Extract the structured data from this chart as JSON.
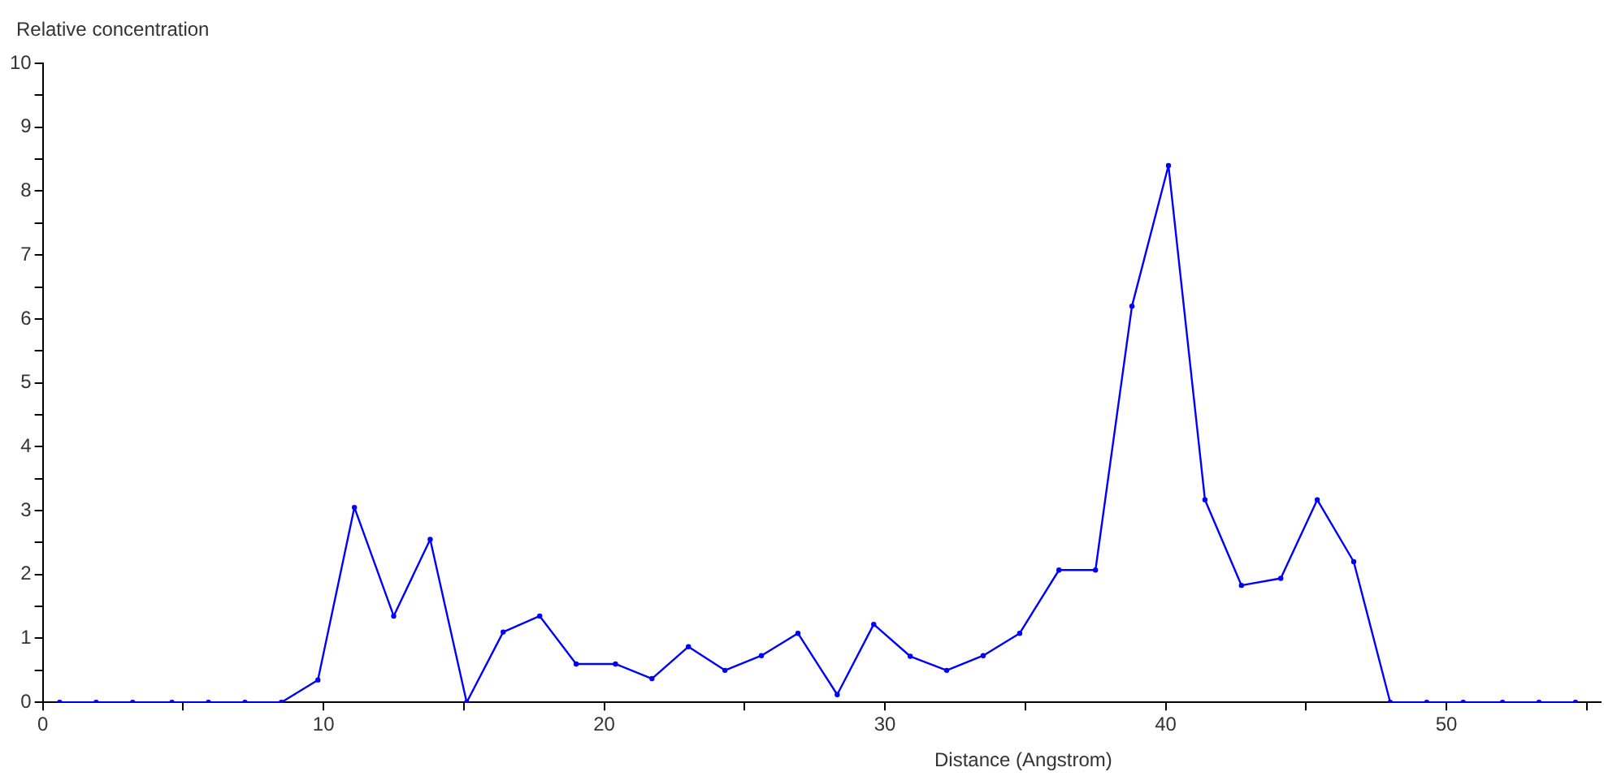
{
  "chart_data": {
    "type": "line",
    "xlabel": "Distance (Angstrom)",
    "ylabel": "Relative concentration",
    "x": [
      0.6,
      1.9,
      3.2,
      4.6,
      5.9,
      7.2,
      8.5,
      9.8,
      11.1,
      12.5,
      13.8,
      15.1,
      16.4,
      17.7,
      19.0,
      20.4,
      21.7,
      23.0,
      24.3,
      25.6,
      26.9,
      28.3,
      29.6,
      30.9,
      32.2,
      33.5,
      34.8,
      36.2,
      37.5,
      38.8,
      40.1,
      41.4,
      42.7,
      44.1,
      45.4,
      46.7,
      48.0,
      49.3,
      50.6,
      52.0,
      53.3,
      54.6
    ],
    "values": [
      0,
      0,
      0,
      0,
      0,
      0,
      0,
      0.35,
      3.05,
      1.35,
      2.55,
      0,
      1.1,
      1.35,
      0.6,
      0.6,
      0.37,
      0.87,
      0.5,
      0.73,
      1.08,
      0.12,
      1.22,
      0.72,
      0.5,
      0.73,
      1.08,
      2.07,
      2.07,
      6.2,
      8.4,
      3.17,
      1.83,
      1.94,
      3.17,
      2.2,
      0,
      0,
      0,
      0,
      0,
      0
    ],
    "color": "#0000ff",
    "marker": "circle",
    "line_style": "solid",
    "xlim": [
      0,
      55.5
    ],
    "xticks": [
      0,
      {
        "value": 5,
        "label": null
      },
      10,
      {
        "value": 15,
        "label": null
      },
      20,
      {
        "value": 25,
        "label": null
      },
      30,
      {
        "value": 35,
        "label": null
      },
      40,
      {
        "value": 45,
        "label": null
      },
      50,
      {
        "value": 55,
        "label": null
      }
    ],
    "ylim": [
      0,
      10
    ],
    "yticks": [
      0,
      {
        "value": 0.5,
        "label": null
      },
      1,
      {
        "value": 1.5,
        "label": null
      },
      2,
      {
        "value": 2.5,
        "label": null
      },
      3,
      {
        "value": 3.5,
        "label": null
      },
      4,
      {
        "value": 4.5,
        "label": null
      },
      5,
      {
        "value": 5.5,
        "label": null
      },
      6,
      {
        "value": 6.5,
        "label": null
      },
      7,
      {
        "value": 7.5,
        "label": null
      },
      8,
      {
        "value": 8.5,
        "label": null
      },
      9,
      {
        "value": 9.5,
        "label": null
      },
      10
    ]
  }
}
